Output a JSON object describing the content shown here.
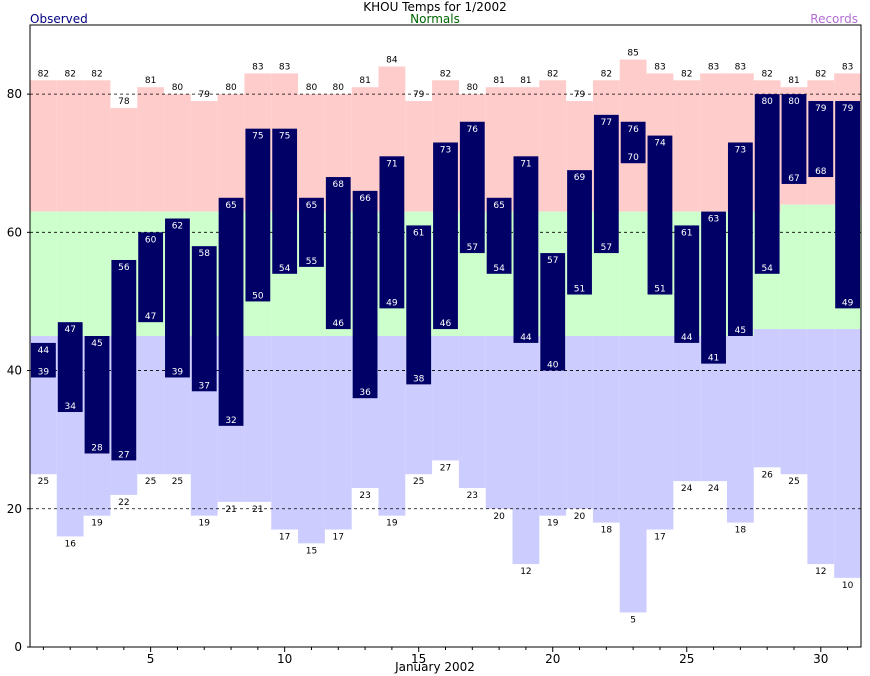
{
  "header": {
    "title": "KHOU Temps for 1/2002",
    "observed_label": "Observed",
    "normals_label": "Normals",
    "records_label": "Records"
  },
  "colors": {
    "observed": "#000066",
    "record_high_band": "#ffcccc",
    "normal_band": "#ccffcc",
    "record_low_band": "#ccccff",
    "observed_text": "#000080",
    "normals_text": "#006600",
    "records_text": "#b36fd6"
  },
  "chart_data": {
    "type": "bar",
    "title": "KHOU Temps for 1/2002",
    "xlabel": "January 2002",
    "ylabel": "",
    "xlim": [
      0.5,
      31.5
    ],
    "ylim": [
      0,
      90
    ],
    "x_ticks": [
      5,
      10,
      15,
      20,
      25,
      30
    ],
    "y_ticks": [
      0,
      20,
      40,
      60,
      80
    ],
    "grid": "horizontal dashed at y ticks",
    "days": [
      1,
      2,
      3,
      4,
      5,
      6,
      7,
      8,
      9,
      10,
      11,
      12,
      13,
      14,
      15,
      16,
      17,
      18,
      19,
      20,
      21,
      22,
      23,
      24,
      25,
      26,
      27,
      28,
      29,
      30,
      31
    ],
    "series": [
      {
        "name": "Observed",
        "high": [
          44,
          47,
          45,
          56,
          60,
          62,
          58,
          65,
          75,
          75,
          65,
          68,
          66,
          71,
          61,
          73,
          76,
          65,
          71,
          57,
          69,
          77,
          76,
          74,
          61,
          63,
          73,
          80,
          80,
          79,
          79
        ],
        "low": [
          39,
          34,
          28,
          27,
          47,
          39,
          37,
          32,
          50,
          54,
          55,
          46,
          36,
          49,
          38,
          46,
          57,
          54,
          44,
          40,
          51,
          57,
          70,
          51,
          44,
          41,
          45,
          54,
          67,
          68,
          49
        ]
      },
      {
        "name": "Normals",
        "high": [
          63,
          63,
          63,
          63,
          63,
          63,
          63,
          63,
          63,
          63,
          63,
          63,
          63,
          63,
          63,
          63,
          63,
          63,
          63,
          63,
          63,
          63,
          63,
          63,
          63,
          63,
          63,
          63,
          64,
          64,
          64
        ],
        "low": [
          45,
          45,
          45,
          45,
          45,
          45,
          45,
          45,
          45,
          45,
          45,
          45,
          45,
          45,
          45,
          45,
          45,
          45,
          45,
          45,
          45,
          45,
          45,
          45,
          45,
          45,
          45,
          46,
          46,
          46,
          46
        ]
      },
      {
        "name": "Records",
        "high": [
          82,
          82,
          82,
          78,
          81,
          80,
          79,
          80,
          83,
          83,
          80,
          80,
          81,
          84,
          79,
          82,
          80,
          81,
          81,
          82,
          79,
          82,
          85,
          83,
          82,
          83,
          83,
          82,
          81,
          82,
          83
        ],
        "low": [
          25,
          16,
          19,
          22,
          25,
          25,
          19,
          21,
          21,
          17,
          15,
          17,
          23,
          19,
          25,
          27,
          23,
          20,
          12,
          19,
          20,
          18,
          5,
          17,
          24,
          24,
          18,
          26,
          25,
          12,
          10
        ]
      }
    ]
  }
}
